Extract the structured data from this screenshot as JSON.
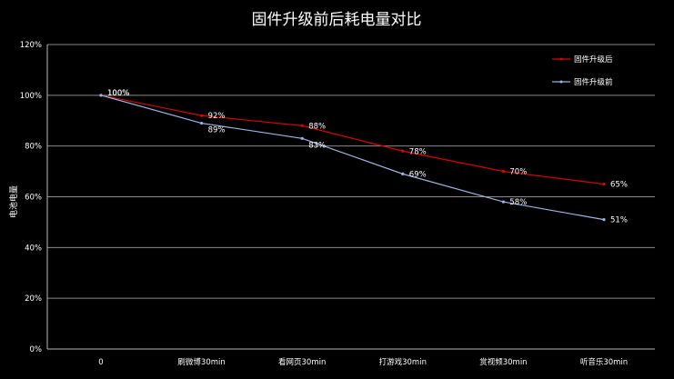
{
  "chart_data": {
    "type": "line",
    "title": "固件升级前后耗电量对比",
    "xlabel": "",
    "ylabel": "电池电量",
    "categories": [
      "0",
      "刷微博30min",
      "看网页30min",
      "打游戏30min",
      "赏视频30min",
      "听音乐30min"
    ],
    "ylim": [
      0,
      120
    ],
    "yticks": [
      "0%",
      "20%",
      "40%",
      "60%",
      "80%",
      "100%",
      "120%"
    ],
    "grid": true,
    "legend_position": "top-right",
    "series": [
      {
        "name": "固件升级后",
        "color": "#e00000",
        "values": [
          100,
          92,
          88,
          78,
          70,
          65
        ],
        "labels": [
          "100%",
          "92%",
          "88%",
          "78%",
          "70%",
          "65%"
        ]
      },
      {
        "name": "固件升级前",
        "color": "#9db4e6",
        "values": [
          100,
          89,
          83,
          69,
          58,
          51
        ],
        "labels": [
          "100%",
          "89%",
          "83%",
          "69%",
          "58%",
          "51%"
        ]
      }
    ]
  }
}
